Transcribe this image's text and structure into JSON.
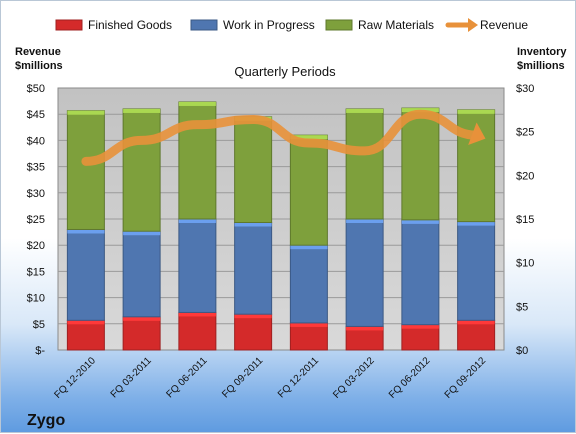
{
  "company": "Zygo",
  "chart_data": {
    "type": "bar",
    "stacked": true,
    "title": "Quarterly Periods",
    "left_axis_label_line1": "Revenue",
    "left_axis_label_line2": "$millions",
    "right_axis_label_line1": "Inventory",
    "right_axis_label_line2": "$millions",
    "categories": [
      "FQ 12-2010",
      "FQ 03-2011",
      "FQ 06-2011",
      "FQ 09-2011",
      "FQ 12-2011",
      "FQ 03-2012",
      "FQ 06-2012",
      "FQ 09-2012"
    ],
    "left_ticks": [
      "$-",
      "$5",
      "$10",
      "$15",
      "$20",
      "$25",
      "$30",
      "$35",
      "$40",
      "$45",
      "$50"
    ],
    "right_ticks": [
      "$0",
      "$5",
      "$10",
      "$15",
      "$20",
      "$25",
      "$30"
    ],
    "left_range": [
      0,
      50
    ],
    "right_range": [
      0,
      30
    ],
    "series": [
      {
        "name": "Finished Goods",
        "axis": "right",
        "color": "#d42a2a",
        "values": [
          3.4,
          3.8,
          4.3,
          4.1,
          3.1,
          2.7,
          2.9,
          3.4
        ]
      },
      {
        "name": "Work in Progress",
        "axis": "right",
        "color": "#4f76b0",
        "values": [
          10.4,
          9.8,
          10.7,
          10.5,
          8.9,
          12.3,
          12.0,
          11.3
        ]
      },
      {
        "name": "Raw Materials",
        "axis": "right",
        "color": "#7ea03c",
        "values": [
          13.6,
          14.0,
          13.4,
          12.1,
          12.6,
          12.6,
          12.8,
          12.8
        ]
      },
      {
        "name": "Revenue",
        "axis": "left",
        "color": "#e8913a",
        "type": "line",
        "values": [
          36,
          40,
          43,
          44,
          39.5,
          38,
          45,
          41
        ]
      }
    ],
    "legend_position": "top",
    "grid": true
  }
}
